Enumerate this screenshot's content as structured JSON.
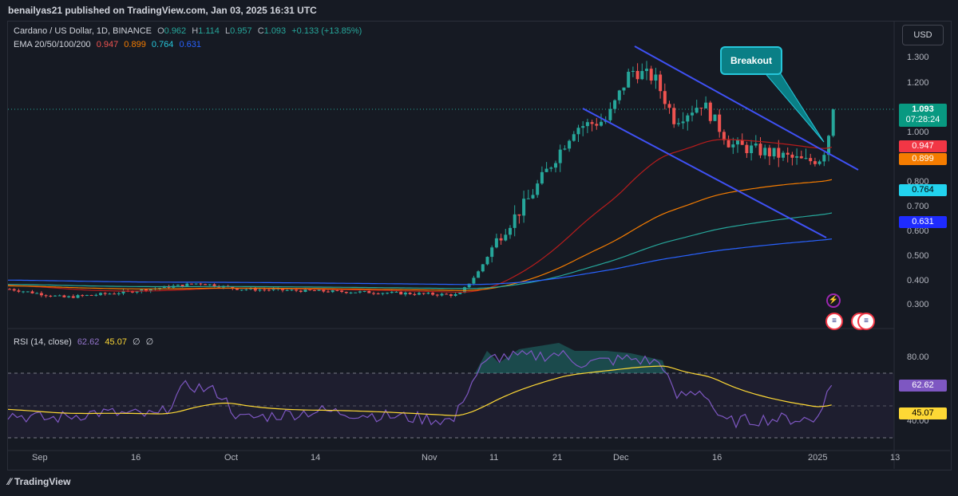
{
  "header": {
    "published": "benailyas21 published on TradingView.com, Jan 03, 2025 16:31 UTC"
  },
  "legend": {
    "symbol": "Cardano / US Dollar, 1D, BINANCE",
    "o_label": "O",
    "o": "0.962",
    "h_label": "H",
    "h": "1.114",
    "l_label": "L",
    "l": "0.957",
    "c_label": "C",
    "c": "1.093",
    "change": "+0.133 (+13.85%)",
    "ema_title": "EMA 20/50/100/200",
    "ema20": "0.947",
    "ema50": "0.899",
    "ema100": "0.764",
    "ema200": "0.631"
  },
  "rsi_legend": {
    "title": "RSI (14, close)",
    "rsi": "62.62",
    "ma": "45.07",
    "extra1": "∅",
    "extra2": "∅"
  },
  "currency": "USD",
  "price_axis": [
    "1.300",
    "1.200",
    "1.000",
    "0.800",
    "0.700",
    "0.600",
    "0.500",
    "0.400",
    "0.300"
  ],
  "rsi_axis": [
    "80.00",
    "40.00"
  ],
  "price_labels": {
    "last": "1.093",
    "countdown": "07:28:24",
    "ema20": "0.947",
    "ema50": "0.899",
    "ema100": "0.764",
    "ema200": "0.631",
    "rsi": "62.62",
    "rsi_ma": "45.07"
  },
  "dates": [
    "Sep",
    "16",
    "Oct",
    "14",
    "Nov",
    "11",
    "21",
    "Dec",
    "16",
    "2025",
    "13"
  ],
  "callout": "Breakout",
  "footer": "TradingView",
  "colors": {
    "up": "#26a69a",
    "down": "#ef5350",
    "ema20": "#b71c1c",
    "ema50": "#f57c00",
    "ema100": "#26a69a",
    "ema200": "#2962ff",
    "channel": "#3f51f5",
    "rsi": "#7e57c2",
    "rsi_ma": "#fdd835"
  },
  "chart_data": {
    "type": "candlestick",
    "symbol": "Cardano / US Dollar",
    "interval": "1D",
    "y_range": [
      0.26,
      1.38
    ],
    "last_candle": {
      "open": 0.962,
      "high": 1.114,
      "low": 0.957,
      "close": 1.093
    },
    "ema": {
      "20": 0.947,
      "50": 0.899,
      "100": 0.764,
      "200": 0.631
    },
    "rsi": {
      "value": 62.62,
      "ma": 45.07,
      "levels": [
        70,
        50,
        30
      ]
    }
  }
}
